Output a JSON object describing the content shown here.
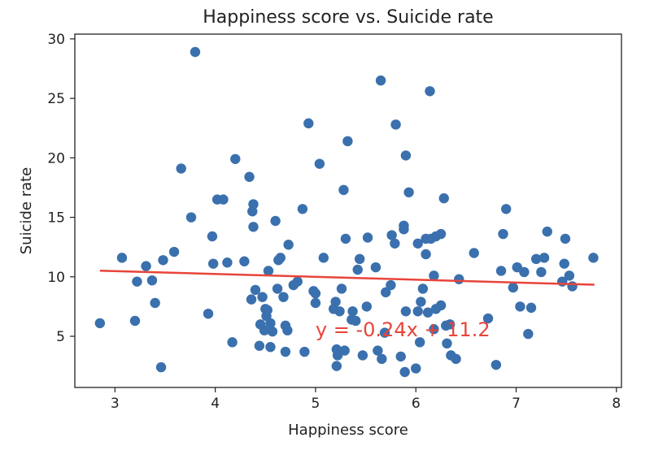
{
  "chart_data": {
    "type": "scatter",
    "title": "Happiness score vs. Suicide rate",
    "xlabel": "Happiness score",
    "ylabel": "Suicide rate",
    "xlim": [
      2.6,
      8.05
    ],
    "ylim": [
      0.7,
      30.4
    ],
    "xticks": [
      3,
      4,
      5,
      6,
      7,
      8
    ],
    "yticks": [
      5,
      10,
      15,
      20,
      25,
      30
    ],
    "grid": false,
    "colors": {
      "points": "#3a70ad",
      "trendline": "#e8443a",
      "equation": "#e8443a"
    },
    "trendline": {
      "slope": -0.24,
      "intercept": 11.2,
      "x_range": [
        2.85,
        7.78
      ]
    },
    "annotation": "y = -0.24x + 11.2",
    "annotation_pos": [
      5.0,
      5.0
    ],
    "points": [
      [
        2.85,
        6.1
      ],
      [
        3.07,
        11.6
      ],
      [
        3.2,
        6.3
      ],
      [
        3.22,
        9.6
      ],
      [
        3.31,
        10.9
      ],
      [
        3.37,
        9.7
      ],
      [
        3.4,
        7.8
      ],
      [
        3.46,
        2.4
      ],
      [
        3.48,
        11.4
      ],
      [
        3.59,
        12.1
      ],
      [
        3.66,
        19.1
      ],
      [
        3.76,
        15.0
      ],
      [
        3.8,
        28.9
      ],
      [
        3.93,
        6.9
      ],
      [
        3.97,
        13.4
      ],
      [
        3.98,
        11.1
      ],
      [
        4.02,
        16.5
      ],
      [
        4.08,
        16.5
      ],
      [
        4.12,
        11.2
      ],
      [
        4.17,
        4.5
      ],
      [
        4.2,
        19.9
      ],
      [
        4.29,
        11.3
      ],
      [
        4.34,
        18.4
      ],
      [
        4.36,
        8.1
      ],
      [
        4.37,
        15.5
      ],
      [
        4.38,
        16.1
      ],
      [
        4.38,
        14.2
      ],
      [
        4.4,
        8.9
      ],
      [
        4.44,
        4.2
      ],
      [
        4.45,
        6.0
      ],
      [
        4.47,
        8.3
      ],
      [
        4.49,
        5.5
      ],
      [
        4.5,
        7.3
      ],
      [
        4.51,
        6.7
      ],
      [
        4.52,
        7.2
      ],
      [
        4.53,
        10.5
      ],
      [
        4.55,
        6.1
      ],
      [
        4.55,
        4.1
      ],
      [
        4.57,
        5.4
      ],
      [
        4.6,
        14.7
      ],
      [
        4.62,
        9.0
      ],
      [
        4.63,
        11.4
      ],
      [
        4.65,
        11.6
      ],
      [
        4.68,
        8.3
      ],
      [
        4.7,
        5.9
      ],
      [
        4.7,
        3.7
      ],
      [
        4.72,
        5.5
      ],
      [
        4.73,
        12.7
      ],
      [
        4.78,
        9.3
      ],
      [
        4.82,
        9.6
      ],
      [
        4.87,
        15.7
      ],
      [
        4.89,
        3.7
      ],
      [
        4.93,
        22.9
      ],
      [
        4.98,
        8.8
      ],
      [
        5.0,
        8.6
      ],
      [
        5.0,
        7.8
      ],
      [
        5.04,
        19.5
      ],
      [
        5.08,
        11.6
      ],
      [
        5.18,
        7.3
      ],
      [
        5.2,
        7.9
      ],
      [
        5.21,
        3.9
      ],
      [
        5.21,
        2.5
      ],
      [
        5.22,
        3.4
      ],
      [
        5.24,
        7.1
      ],
      [
        5.26,
        9.0
      ],
      [
        5.28,
        17.3
      ],
      [
        5.29,
        3.8
      ],
      [
        5.3,
        13.2
      ],
      [
        5.32,
        21.4
      ],
      [
        5.36,
        6.4
      ],
      [
        5.37,
        7.1
      ],
      [
        5.4,
        6.3
      ],
      [
        5.42,
        10.6
      ],
      [
        5.44,
        11.5
      ],
      [
        5.47,
        3.4
      ],
      [
        5.51,
        7.5
      ],
      [
        5.52,
        13.3
      ],
      [
        5.6,
        10.8
      ],
      [
        5.62,
        3.8
      ],
      [
        5.65,
        26.5
      ],
      [
        5.66,
        3.1
      ],
      [
        5.69,
        5.3
      ],
      [
        5.7,
        8.7
      ],
      [
        5.75,
        9.3
      ],
      [
        5.76,
        13.5
      ],
      [
        5.79,
        12.8
      ],
      [
        5.8,
        22.8
      ],
      [
        5.85,
        3.3
      ],
      [
        5.88,
        14.3
      ],
      [
        5.88,
        14.0
      ],
      [
        5.89,
        2.0
      ],
      [
        5.9,
        7.1
      ],
      [
        5.9,
        20.2
      ],
      [
        5.93,
        17.1
      ],
      [
        6.0,
        2.3
      ],
      [
        6.02,
        12.8
      ],
      [
        6.02,
        7.1
      ],
      [
        6.04,
        4.5
      ],
      [
        6.05,
        7.9
      ],
      [
        6.07,
        9.0
      ],
      [
        6.1,
        13.2
      ],
      [
        6.1,
        11.9
      ],
      [
        6.12,
        7.0
      ],
      [
        6.14,
        25.6
      ],
      [
        6.15,
        13.2
      ],
      [
        6.18,
        10.1
      ],
      [
        6.18,
        5.6
      ],
      [
        6.2,
        7.3
      ],
      [
        6.2,
        13.4
      ],
      [
        6.25,
        13.6
      ],
      [
        6.25,
        7.6
      ],
      [
        6.28,
        16.6
      ],
      [
        6.3,
        5.9
      ],
      [
        6.31,
        4.4
      ],
      [
        6.34,
        6.0
      ],
      [
        6.35,
        3.4
      ],
      [
        6.4,
        3.1
      ],
      [
        6.43,
        9.8
      ],
      [
        6.58,
        12.0
      ],
      [
        6.72,
        6.5
      ],
      [
        6.8,
        2.6
      ],
      [
        6.85,
        10.5
      ],
      [
        6.87,
        13.6
      ],
      [
        6.9,
        15.7
      ],
      [
        6.97,
        9.1
      ],
      [
        7.01,
        10.8
      ],
      [
        7.04,
        7.5
      ],
      [
        7.08,
        10.4
      ],
      [
        7.12,
        5.2
      ],
      [
        7.15,
        7.4
      ],
      [
        7.2,
        11.5
      ],
      [
        7.25,
        10.4
      ],
      [
        7.28,
        11.6
      ],
      [
        7.31,
        13.8
      ],
      [
        7.46,
        9.6
      ],
      [
        7.48,
        11.1
      ],
      [
        7.49,
        13.2
      ],
      [
        7.53,
        10.1
      ],
      [
        7.56,
        9.2
      ],
      [
        7.77,
        11.6
      ]
    ]
  }
}
